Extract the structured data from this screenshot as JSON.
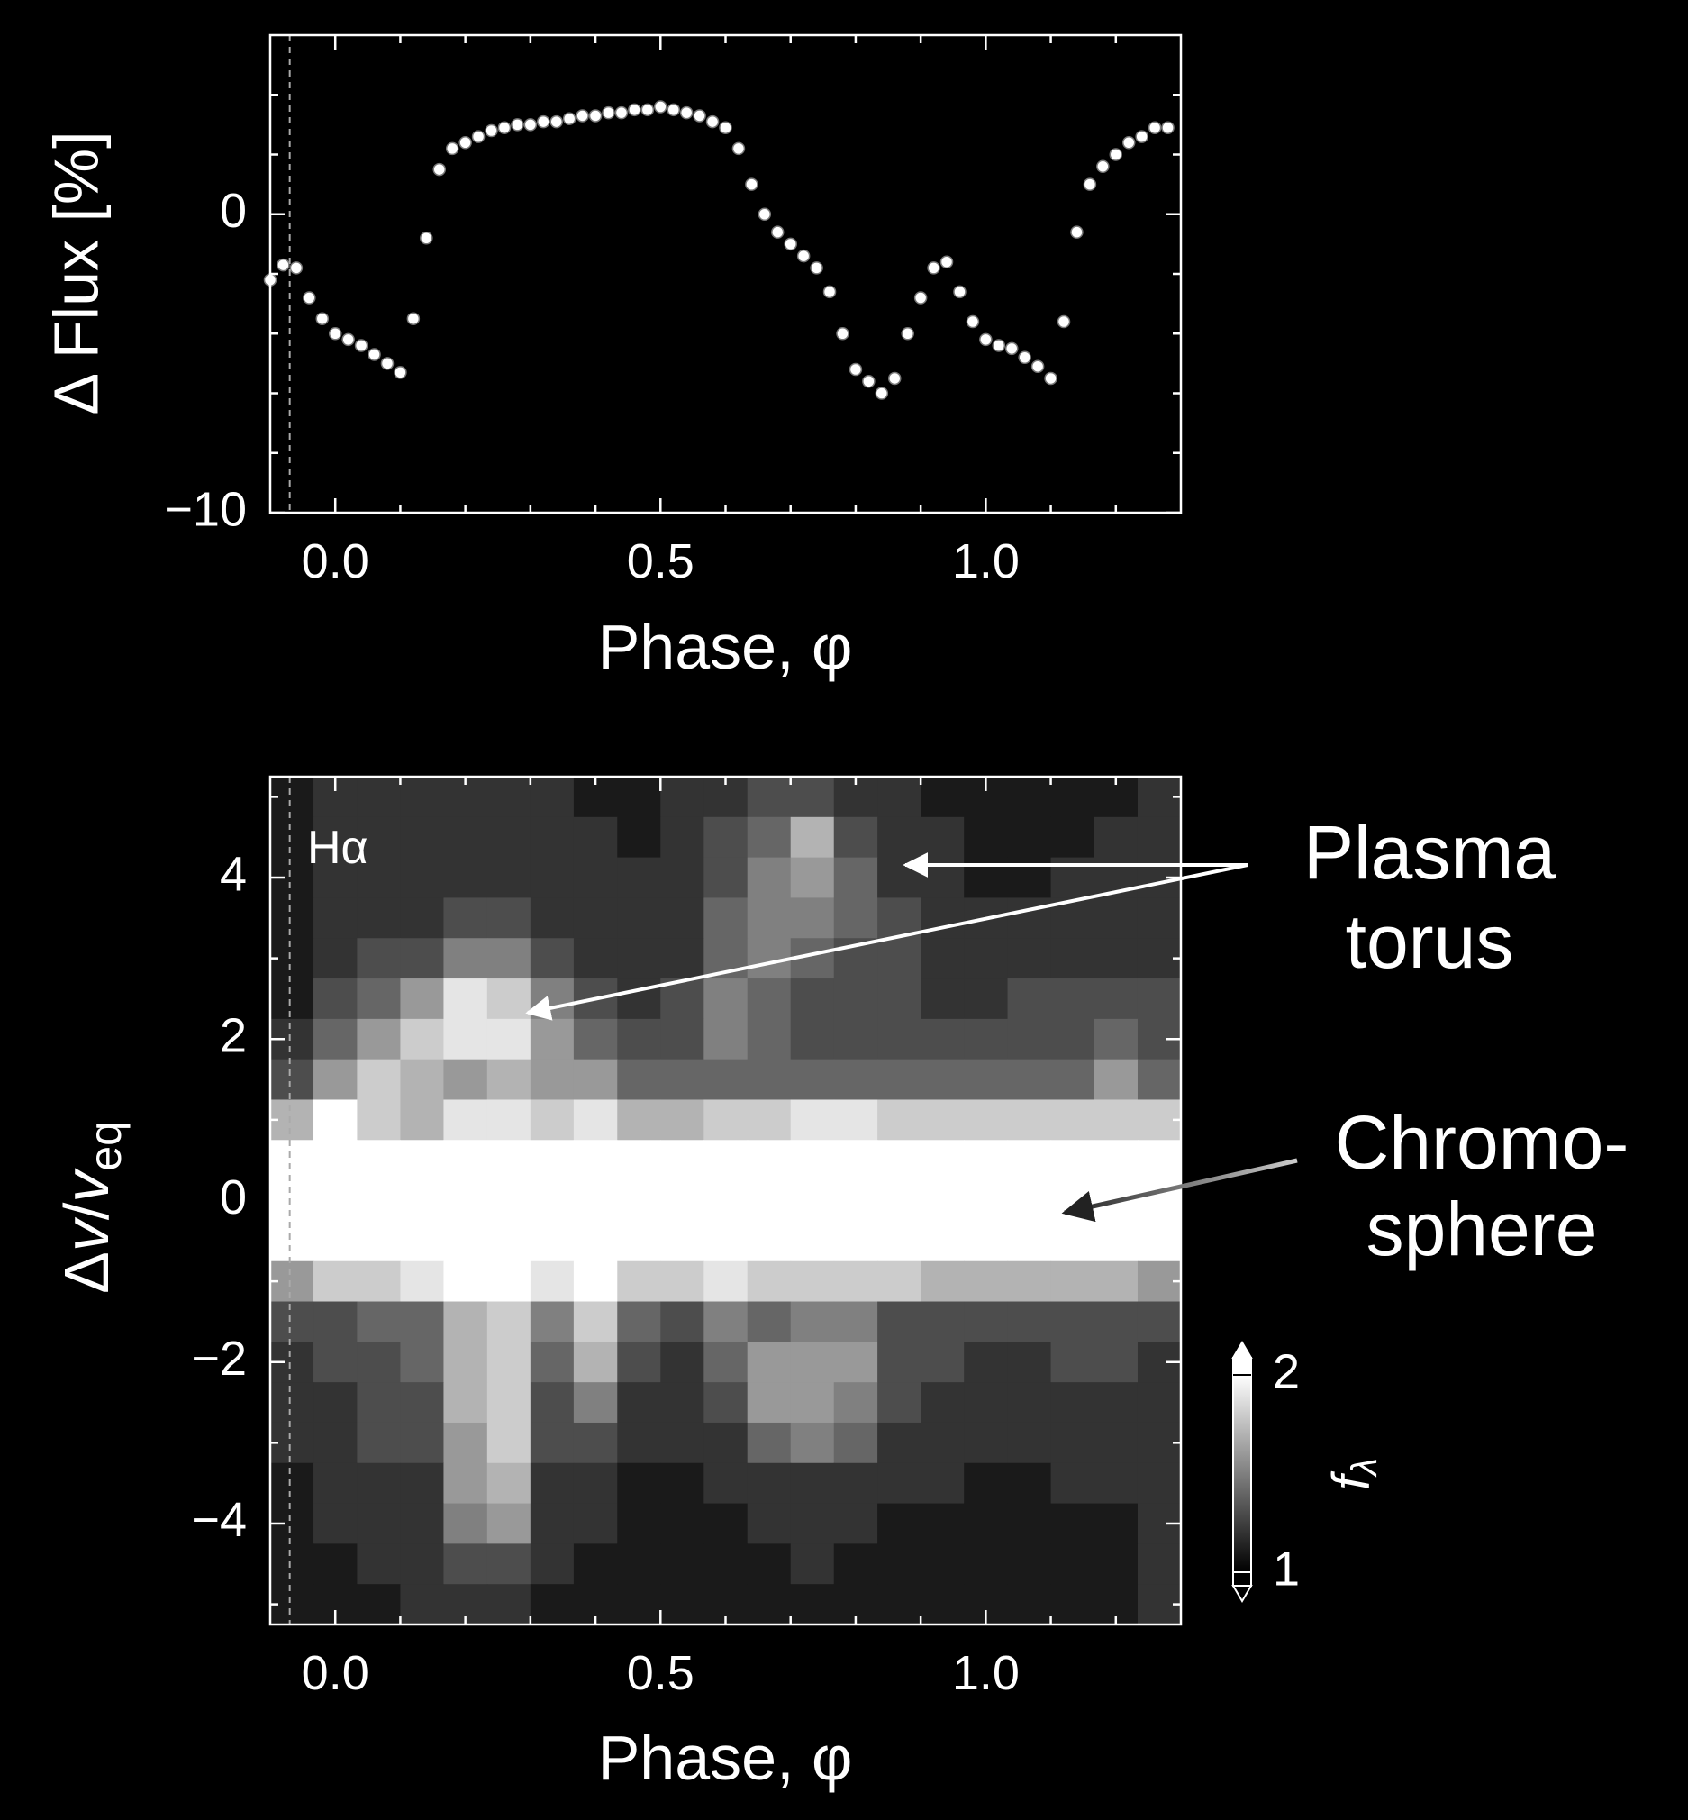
{
  "chart_data": [
    {
      "type": "scatter",
      "ylabel": "Δ Flux [%]",
      "xlabel": "Phase, φ",
      "xlim": [
        -0.1,
        1.3
      ],
      "ylim": [
        -10,
        6
      ],
      "xticks": [
        {
          "value": 0,
          "label": "0.0"
        },
        {
          "value": 0.5,
          "label": "0.5"
        },
        {
          "value": 1,
          "label": "1.0"
        }
      ],
      "xminor": [
        0.1,
        0.2,
        0.3,
        0.4,
        0.6,
        0.7,
        0.8,
        0.9,
        1.1,
        1.2
      ],
      "yticks": [
        {
          "value": -10,
          "label": "−10"
        },
        0
      ],
      "yminor": [
        -8,
        -6,
        -4,
        -2,
        2,
        4
      ],
      "vline": -0.07,
      "color": "#ffffff",
      "x": [
        -0.1,
        -0.08,
        -0.06,
        -0.04,
        -0.02,
        0.0,
        0.02,
        0.04,
        0.06,
        0.08,
        0.1,
        0.12,
        0.14,
        0.16,
        0.18,
        0.2,
        0.22,
        0.24,
        0.26,
        0.28,
        0.3,
        0.32,
        0.34,
        0.36,
        0.38,
        0.4,
        0.42,
        0.44,
        0.46,
        0.48,
        0.5,
        0.52,
        0.54,
        0.56,
        0.58,
        0.6,
        0.62,
        0.64,
        0.66,
        0.68,
        0.7,
        0.72,
        0.74,
        0.76,
        0.78,
        0.8,
        0.82,
        0.84,
        0.86,
        0.88,
        0.9,
        0.92,
        0.94,
        0.96,
        0.98,
        1.0,
        1.02,
        1.04,
        1.06,
        1.08,
        1.1,
        1.12,
        1.14,
        1.16,
        1.18,
        1.2,
        1.22,
        1.24,
        1.26,
        1.28
      ],
      "values": [
        -2.2,
        -1.7,
        -1.8,
        -2.8,
        -3.5,
        -4.0,
        -4.2,
        -4.4,
        -4.7,
        -5.0,
        -5.3,
        -3.5,
        -0.8,
        1.5,
        2.2,
        2.4,
        2.6,
        2.8,
        2.9,
        3.0,
        3.0,
        3.1,
        3.1,
        3.2,
        3.3,
        3.3,
        3.4,
        3.4,
        3.5,
        3.5,
        3.6,
        3.5,
        3.4,
        3.3,
        3.1,
        2.9,
        2.2,
        1.0,
        0.0,
        -0.6,
        -1.0,
        -1.4,
        -1.8,
        -2.6,
        -4.0,
        -5.2,
        -5.6,
        -6.0,
        -5.5,
        -4.0,
        -2.8,
        -1.8,
        -1.6,
        -2.6,
        -3.6,
        -4.2,
        -4.4,
        -4.5,
        -4.8,
        -5.1,
        -5.5,
        -3.6,
        -0.6,
        1.0,
        1.6,
        2.0,
        2.4,
        2.6,
        2.9,
        2.9
      ]
    },
    {
      "type": "heatmap",
      "ylabel": [
        "Δ",
        "v",
        "/",
        "v",
        "eq"
      ],
      "xlabel": "Phase, φ",
      "label": "Hα",
      "annotations": [
        [
          "Plasma",
          "torus"
        ],
        [
          "Chromo-",
          "sphere"
        ]
      ],
      "xlim": [
        -0.1,
        1.3
      ],
      "ylim": [
        -5.25,
        5.25
      ],
      "xticks": [
        {
          "value": 0,
          "label": "0.0"
        },
        {
          "value": 0.5,
          "label": "0.5"
        },
        {
          "value": 1,
          "label": "1.0"
        }
      ],
      "xminor": [
        0.1,
        0.2,
        0.3,
        0.4,
        0.6,
        0.7,
        0.8,
        0.9,
        1.1,
        1.2
      ],
      "yticks": [
        {
          "value": -4,
          "label": "−4"
        },
        {
          "value": -2,
          "label": "−2"
        },
        0,
        2,
        4
      ],
      "yminor": [
        -5,
        -3,
        -1,
        1,
        3,
        5
      ],
      "vline": -0.07,
      "colorbar": {
        "label": "f",
        "label_sub": "λ",
        "lim": [
          1,
          2
        ],
        "ticks": [
          1,
          2
        ]
      },
      "x": [
        -0.067,
        0.0,
        0.067,
        0.133,
        0.2,
        0.267,
        0.333,
        0.4,
        0.467,
        0.533,
        0.6,
        0.667,
        0.733,
        0.8,
        0.867,
        0.933,
        1.0,
        1.067,
        1.133,
        1.2,
        1.267
      ],
      "y": [
        5,
        4.5,
        4,
        3.5,
        3,
        2.5,
        2,
        1.5,
        1,
        0.5,
        0,
        -0.5,
        -1,
        -1.5,
        -2,
        -2.5,
        -3,
        -3.5,
        -4,
        -4.5,
        -5
      ],
      "z": [
        [
          1.1,
          1.2,
          1.2,
          1.2,
          1.2,
          1.2,
          1.2,
          1.1,
          1.1,
          1.2,
          1.2,
          1.3,
          1.3,
          1.2,
          1.2,
          1.1,
          1.1,
          1.1,
          1.1,
          1.1,
          1.2
        ],
        [
          1.1,
          1.2,
          1.2,
          1.2,
          1.2,
          1.2,
          1.2,
          1.2,
          1.1,
          1.2,
          1.3,
          1.4,
          1.7,
          1.3,
          1.2,
          1.2,
          1.1,
          1.1,
          1.1,
          1.2,
          1.2
        ],
        [
          1.1,
          1.2,
          1.2,
          1.2,
          1.2,
          1.2,
          1.2,
          1.2,
          1.2,
          1.2,
          1.3,
          1.5,
          1.6,
          1.4,
          1.2,
          1.2,
          1.1,
          1.1,
          1.2,
          1.2,
          1.2
        ],
        [
          1.1,
          1.2,
          1.2,
          1.2,
          1.3,
          1.3,
          1.2,
          1.2,
          1.2,
          1.2,
          1.4,
          1.5,
          1.5,
          1.4,
          1.3,
          1.2,
          1.2,
          1.2,
          1.2,
          1.2,
          1.2
        ],
        [
          1.1,
          1.2,
          1.3,
          1.3,
          1.5,
          1.5,
          1.3,
          1.2,
          1.2,
          1.2,
          1.4,
          1.5,
          1.4,
          1.3,
          1.3,
          1.2,
          1.2,
          1.2,
          1.2,
          1.2,
          1.2
        ],
        [
          1.1,
          1.3,
          1.4,
          1.6,
          1.9,
          1.8,
          1.5,
          1.3,
          1.2,
          1.3,
          1.5,
          1.4,
          1.3,
          1.3,
          1.3,
          1.2,
          1.2,
          1.3,
          1.3,
          1.3,
          1.3
        ],
        [
          1.2,
          1.4,
          1.6,
          1.8,
          1.9,
          1.9,
          1.6,
          1.4,
          1.3,
          1.3,
          1.5,
          1.4,
          1.3,
          1.3,
          1.3,
          1.3,
          1.3,
          1.3,
          1.3,
          1.4,
          1.3
        ],
        [
          1.3,
          1.6,
          1.8,
          1.7,
          1.6,
          1.7,
          1.6,
          1.6,
          1.4,
          1.4,
          1.4,
          1.4,
          1.4,
          1.4,
          1.4,
          1.4,
          1.4,
          1.4,
          1.4,
          1.6,
          1.4
        ],
        [
          1.7,
          2.0,
          1.8,
          1.7,
          1.9,
          1.9,
          1.8,
          1.9,
          1.7,
          1.7,
          1.8,
          1.8,
          1.9,
          1.9,
          1.8,
          1.8,
          1.8,
          1.8,
          1.8,
          1.8,
          1.8
        ],
        [
          2.0,
          2.0,
          2.0,
          2.0,
          2.0,
          2.0,
          2.0,
          2.0,
          2.0,
          2.0,
          2.0,
          2.0,
          2.0,
          2.0,
          2.0,
          2.0,
          2.0,
          2.0,
          2.0,
          2.0,
          2.0
        ],
        [
          2.0,
          2.0,
          2.0,
          2.0,
          2.0,
          2.0,
          2.0,
          2.0,
          2.0,
          2.0,
          2.0,
          2.0,
          2.0,
          2.0,
          2.0,
          2.0,
          2.0,
          2.0,
          2.0,
          2.0,
          2.0
        ],
        [
          2.0,
          2.0,
          2.0,
          2.0,
          2.0,
          2.0,
          2.0,
          2.0,
          2.0,
          2.0,
          2.0,
          2.0,
          2.0,
          2.0,
          2.0,
          2.0,
          2.0,
          2.0,
          2.0,
          2.0,
          2.0
        ],
        [
          1.6,
          1.8,
          1.8,
          1.9,
          2.0,
          2.0,
          1.9,
          2.0,
          1.8,
          1.8,
          1.9,
          1.8,
          1.8,
          1.8,
          1.8,
          1.7,
          1.7,
          1.7,
          1.7,
          1.7,
          1.6
        ],
        [
          1.3,
          1.3,
          1.4,
          1.4,
          1.7,
          1.8,
          1.5,
          1.8,
          1.4,
          1.3,
          1.5,
          1.4,
          1.5,
          1.5,
          1.3,
          1.3,
          1.3,
          1.3,
          1.3,
          1.3,
          1.3
        ],
        [
          1.2,
          1.3,
          1.3,
          1.4,
          1.7,
          1.8,
          1.4,
          1.7,
          1.3,
          1.2,
          1.4,
          1.6,
          1.6,
          1.6,
          1.3,
          1.3,
          1.2,
          1.2,
          1.3,
          1.3,
          1.2
        ],
        [
          1.2,
          1.2,
          1.3,
          1.3,
          1.7,
          1.8,
          1.3,
          1.5,
          1.2,
          1.2,
          1.3,
          1.6,
          1.6,
          1.5,
          1.3,
          1.2,
          1.2,
          1.2,
          1.2,
          1.2,
          1.2
        ],
        [
          1.2,
          1.2,
          1.3,
          1.3,
          1.6,
          1.8,
          1.3,
          1.3,
          1.2,
          1.2,
          1.2,
          1.4,
          1.5,
          1.4,
          1.2,
          1.2,
          1.2,
          1.2,
          1.2,
          1.2,
          1.2
        ],
        [
          1.1,
          1.2,
          1.2,
          1.2,
          1.6,
          1.7,
          1.2,
          1.2,
          1.1,
          1.1,
          1.2,
          1.2,
          1.2,
          1.2,
          1.2,
          1.2,
          1.1,
          1.1,
          1.2,
          1.2,
          1.2
        ],
        [
          1.1,
          1.2,
          1.2,
          1.2,
          1.5,
          1.6,
          1.2,
          1.2,
          1.1,
          1.1,
          1.1,
          1.2,
          1.2,
          1.2,
          1.1,
          1.1,
          1.1,
          1.1,
          1.1,
          1.1,
          1.2
        ],
        [
          1.1,
          1.1,
          1.2,
          1.2,
          1.3,
          1.3,
          1.2,
          1.1,
          1.1,
          1.1,
          1.1,
          1.1,
          1.2,
          1.1,
          1.1,
          1.1,
          1.1,
          1.1,
          1.1,
          1.1,
          1.2
        ],
        [
          1.1,
          1.1,
          1.1,
          1.2,
          1.2,
          1.2,
          1.1,
          1.1,
          1.1,
          1.1,
          1.1,
          1.1,
          1.1,
          1.1,
          1.1,
          1.1,
          1.1,
          1.1,
          1.1,
          1.1,
          1.2
        ]
      ]
    }
  ]
}
